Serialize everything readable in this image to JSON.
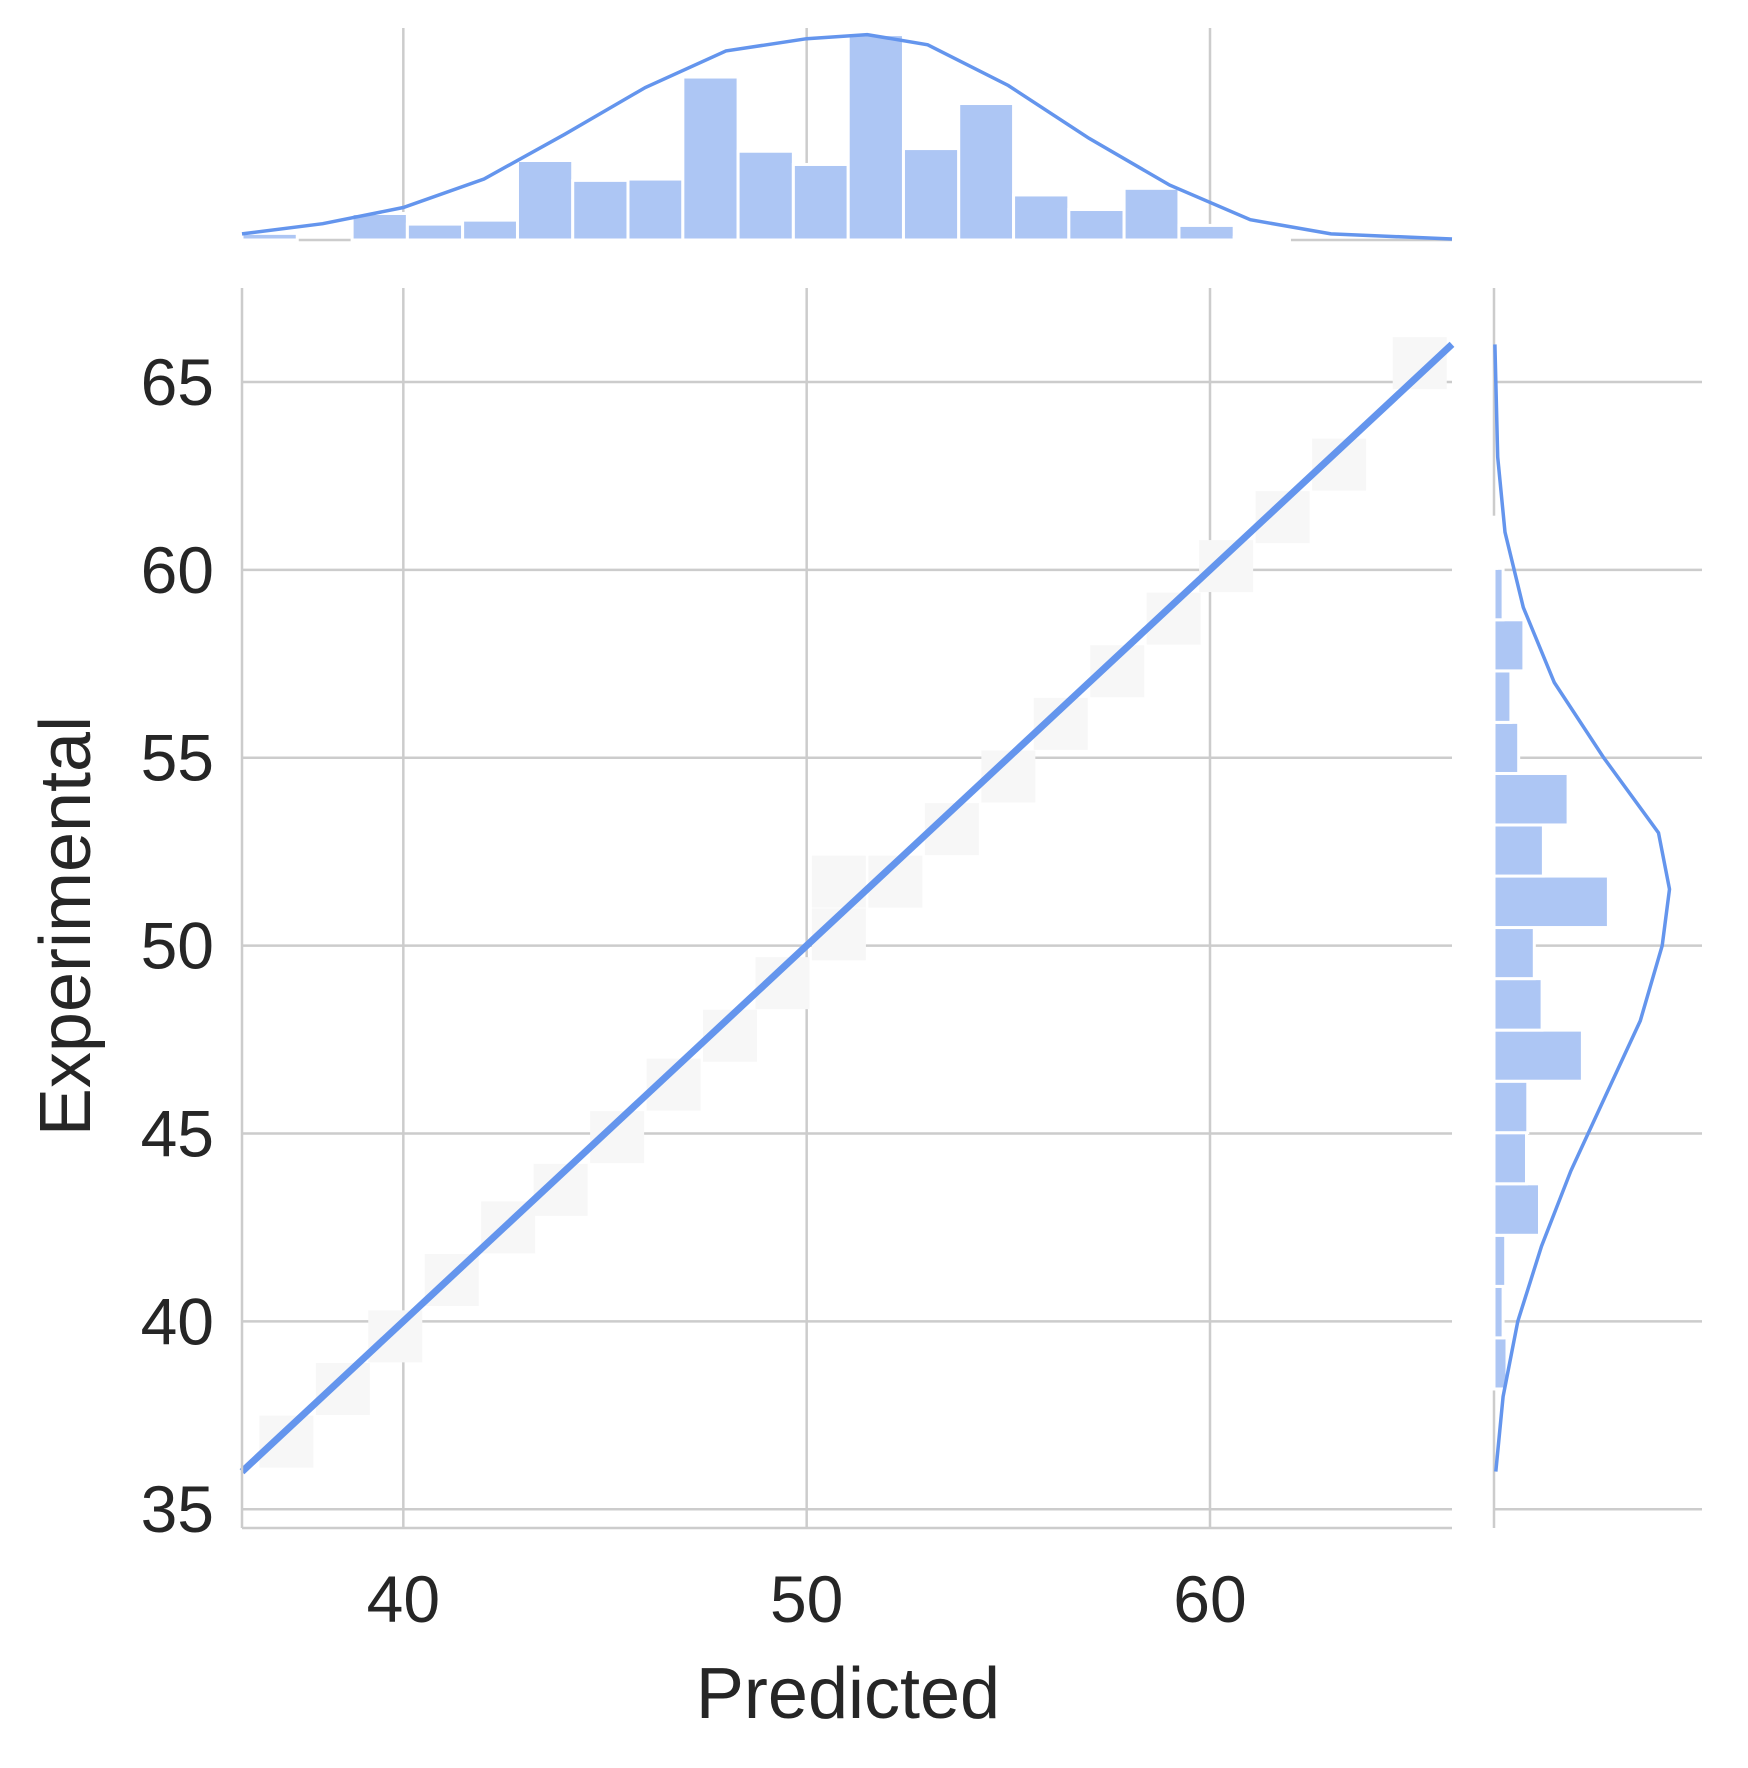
{
  "chart_data": {
    "type": "scatter",
    "xlabel": "Predicted",
    "ylabel": "Experimental",
    "xlim": [
      36,
      66
    ],
    "ylim": [
      34.5,
      67.5
    ],
    "xticks": [
      40,
      50,
      60
    ],
    "yticks": [
      35,
      40,
      45,
      50,
      55,
      60,
      65
    ],
    "grid": true,
    "line": {
      "x": [
        36,
        66
      ],
      "y": [
        36,
        66
      ]
    },
    "faint_points": [
      {
        "x": 37.1,
        "y": 36.8
      },
      {
        "x": 38.5,
        "y": 38.2
      },
      {
        "x": 39.8,
        "y": 39.6
      },
      {
        "x": 41.2,
        "y": 41.1
      },
      {
        "x": 42.6,
        "y": 42.5
      },
      {
        "x": 43.9,
        "y": 43.5
      },
      {
        "x": 45.3,
        "y": 44.9
      },
      {
        "x": 46.7,
        "y": 46.3
      },
      {
        "x": 48.1,
        "y": 47.6
      },
      {
        "x": 49.4,
        "y": 49.0
      },
      {
        "x": 50.8,
        "y": 50.3
      },
      {
        "x": 50.8,
        "y": 51.7
      },
      {
        "x": 52.2,
        "y": 51.7
      },
      {
        "x": 53.6,
        "y": 53.1
      },
      {
        "x": 55.0,
        "y": 54.5
      },
      {
        "x": 56.3,
        "y": 55.9
      },
      {
        "x": 57.7,
        "y": 57.3
      },
      {
        "x": 59.1,
        "y": 58.7
      },
      {
        "x": 60.4,
        "y": 60.1
      },
      {
        "x": 61.8,
        "y": 61.4
      },
      {
        "x": 63.2,
        "y": 62.8
      },
      {
        "x": 65.2,
        "y": 65.5
      }
    ],
    "marginal_x": {
      "bin_edges": [
        36.0,
        37.37,
        38.73,
        40.1,
        41.47,
        42.83,
        44.2,
        45.57,
        46.93,
        48.3,
        49.67,
        51.03,
        52.4,
        53.77,
        55.13,
        56.5,
        57.87,
        59.23,
        60.6,
        61.97,
        63.33
      ],
      "counts": [
        0.5,
        0,
        2,
        1.2,
        1.5,
        6,
        4.5,
        4.6,
        12.3,
        6.7,
        5.7,
        15.5,
        6.9,
        10.3,
        3.4,
        2.3,
        3.9,
        1.1,
        0.2,
        0
      ],
      "kde_x": [
        36,
        38,
        40,
        42,
        44,
        46,
        48,
        50,
        51.5,
        53,
        55,
        57,
        59,
        61,
        63,
        66
      ],
      "kde_y": [
        0.3,
        0.8,
        1.6,
        3.0,
        5.2,
        7.5,
        9.3,
        9.9,
        10.1,
        9.6,
        7.6,
        5.0,
        2.7,
        1.0,
        0.3,
        0.05
      ],
      "max": 16
    },
    "marginal_y": {
      "bin_edges": [
        38.2,
        39.56,
        40.93,
        42.29,
        43.66,
        45.02,
        46.39,
        47.75,
        49.12,
        50.48,
        51.85,
        53.21,
        54.58,
        55.94,
        57.31,
        58.67,
        60.04,
        61.4
      ],
      "counts": [
        1,
        0.7,
        0.9,
        3.5,
        2.5,
        2.6,
        6.8,
        3.7,
        3.1,
        8.8,
        3.8,
        5.7,
        1.9,
        1.3,
        2.3,
        0.7,
        0.2
      ],
      "kde_y": [
        36,
        38,
        40,
        42,
        44,
        46,
        48,
        50,
        51.5,
        53,
        55,
        57,
        59,
        61,
        63,
        66
      ],
      "kde_x": [
        0.1,
        0.5,
        1.3,
        2.6,
        4.2,
        6.1,
        8.0,
        9.2,
        9.6,
        9.0,
        6.0,
        3.3,
        1.6,
        0.6,
        0.2,
        0.05
      ],
      "max": 16
    }
  }
}
